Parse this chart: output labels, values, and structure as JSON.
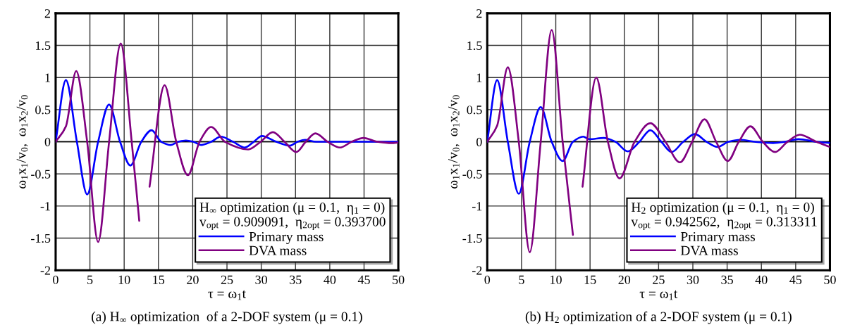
{
  "chart_data": [
    {
      "type": "line",
      "xlabel": "τ = ω$_{1}$t",
      "ylabel": "ω$_{1}$x$_{1}$/v$_{0}$,  ω$_{1}$x$_{2}$/v$_{0}$",
      "legend_title": "H$_{∞}$ optimization (μ = 0.1,  η$_{1}$ = 0)\nv$_{opt}$ = 0.909091,  η$_{2opt}$ = 0.393700",
      "annotations": [
        "(a) H$_{∞}$ optimization  of a 2-DOF system (μ = 0.1)"
      ],
      "xlim": [
        0,
        50
      ],
      "ylim": [
        -2,
        2
      ],
      "xticks": [
        0,
        5,
        10,
        15,
        20,
        25,
        30,
        35,
        40,
        45,
        50
      ],
      "yticks": [
        -2,
        -1.5,
        -1,
        -0.5,
        0,
        0.5,
        1,
        1.5,
        2
      ],
      "grid": true,
      "legend": "bottom right",
      "marker": "none",
      "line_style": "solid",
      "series": [
        {
          "name": "Primary mass",
          "color": "#0000ff",
          "x": [
            0,
            1.5,
            3.1,
            4.6,
            6.2,
            7.8,
            9.4,
            10.9,
            12.5,
            14.0,
            15.4,
            16.8,
            17.9,
            19.0,
            20.1,
            21.2,
            22.7,
            24.1,
            25.9,
            27.6,
            28.9,
            30.1,
            32.2,
            34.2,
            35.3,
            36.4,
            38,
            40,
            45,
            50
          ],
          "values": [
            0,
            0.96,
            0,
            -0.82,
            0,
            0.58,
            0,
            -0.37,
            0,
            0.18,
            0,
            -0.05,
            0,
            0.02,
            0,
            -0.05,
            0,
            0.08,
            0,
            -0.09,
            0,
            0.09,
            0,
            -0.06,
            0,
            0.03,
            0,
            0,
            0,
            0
          ]
        },
        {
          "name": "DVA mass",
          "color": "#800080",
          "x": [
            0,
            1.5,
            3.0,
            4.6,
            6.2,
            7.8,
            9.5,
            11.1,
            12.2,
            13,
            13.7,
            15.9,
            17.6,
            19.3,
            21.0,
            22.7,
            24.7,
            28.1,
            29.9,
            31.7,
            33.4,
            35.1,
            36.5,
            37.9,
            39.7,
            41.5,
            43.2,
            44.9,
            47,
            49,
            50
          ],
          "values": [
            0,
            0.24,
            1.1,
            0,
            -1.56,
            0,
            1.53,
            0,
            -1.23,
            null,
            -0.7,
            0.88,
            0,
            -0.52,
            0,
            0.23,
            0,
            -0.12,
            0,
            0.15,
            0,
            -0.16,
            0,
            0.13,
            0,
            -0.09,
            0,
            0.06,
            0,
            -0.02,
            -0.01
          ]
        }
      ]
    },
    {
      "type": "line",
      "xlabel": "τ = ω$_{1}$t",
      "ylabel": "ω$_{1}$x$_{1}$/v$_{0}$,  ω$_{1}$x$_{2}$/v$_{0}$",
      "legend_title": "H$_{2}$ optimization (μ = 0.1,  η$_{1}$ = 0)\nv$_{opt}$ = 0.942562,  η$_{2opt}$ = 0.313311",
      "annotations": [
        "(b) H$_{2}$ optimization of a 2-DOF system (μ = 0.1)"
      ],
      "xlim": [
        0,
        50
      ],
      "ylim": [
        -2,
        2
      ],
      "xticks": [
        0,
        5,
        10,
        15,
        20,
        25,
        30,
        35,
        40,
        45,
        50
      ],
      "yticks": [
        -2,
        -1.5,
        -1,
        -0.5,
        0,
        0.5,
        1,
        1.5,
        2
      ],
      "grid": true,
      "legend": "bottom right",
      "marker": "none",
      "line_style": "solid",
      "series": [
        {
          "name": "Primary mass",
          "color": "#0000ff",
          "x": [
            0,
            1.44,
            3.0,
            4.6,
            6.2,
            7.8,
            9.4,
            11.0,
            12.5,
            14.0,
            14.9,
            17.0,
            18.7,
            20.5,
            22.2,
            23.8,
            25.4,
            26.9,
            28.6,
            30.3,
            32.0,
            33.6,
            35.2,
            36.9,
            39,
            41.7,
            43.5,
            45.4,
            48,
            50
          ],
          "values": [
            0,
            0.96,
            0,
            -0.81,
            0,
            0.54,
            0,
            -0.3,
            0,
            0.08,
            0.04,
            0.06,
            0,
            -0.15,
            0,
            0.18,
            0,
            -0.16,
            0,
            0.12,
            0,
            -0.08,
            0,
            0.03,
            0,
            -0.02,
            0,
            0.04,
            0,
            -0.02
          ]
        },
        {
          "name": "DVA mass",
          "color": "#800080",
          "x": [
            0,
            1.44,
            3.0,
            4.6,
            6.2,
            7.8,
            9.4,
            11.0,
            12.5,
            13.2,
            13.9,
            15.9,
            17.6,
            19.3,
            21.5,
            23.8,
            26.0,
            28.1,
            29.9,
            31.7,
            33.4,
            35.1,
            36.7,
            38.4,
            40.2,
            42.0,
            43.8,
            45.6,
            48,
            50
          ],
          "values": [
            0,
            0.25,
            1.16,
            0,
            -1.72,
            0,
            1.74,
            0,
            -1.45,
            null,
            -0.7,
            1.0,
            0,
            -0.57,
            0,
            0.29,
            0,
            -0.32,
            0,
            0.35,
            0,
            -0.3,
            0,
            0.24,
            0,
            -0.16,
            0,
            0.11,
            0,
            -0.08
          ]
        }
      ]
    }
  ]
}
